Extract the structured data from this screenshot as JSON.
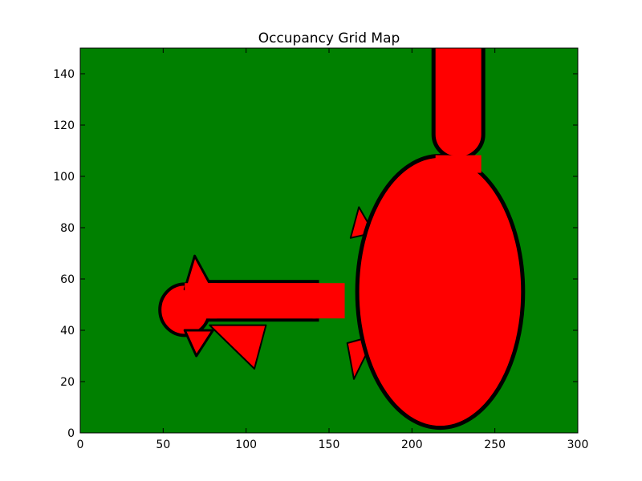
{
  "chart_data": {
    "type": "heatmap",
    "title": "Occupancy Grid Map",
    "xlabel": "",
    "ylabel": "",
    "xlim": [
      0,
      300
    ],
    "ylim": [
      0,
      150
    ],
    "x_ticks": [
      0,
      50,
      100,
      150,
      200,
      250,
      300
    ],
    "y_ticks": [
      0,
      20,
      40,
      60,
      80,
      100,
      120,
      140
    ],
    "grid": false,
    "legend": "none",
    "colors": {
      "unknown": "#008000",
      "free": "#ff0000",
      "occupied": "#000000"
    },
    "free_region": {
      "main_ellipse": {
        "center": [
          217,
          55
        ],
        "radius_x": 50,
        "radius_y": 53
      },
      "top_corridor": {
        "x": [
          213,
          243
        ],
        "y": [
          107,
          150
        ]
      },
      "left_corridor": {
        "x": [
          75,
          143
        ],
        "y": [
          44,
          59
        ]
      },
      "left_bulb": {
        "center": [
          63,
          48
        ],
        "radius_x": 15,
        "radius_y": 10
      },
      "left_spike_top": {
        "peak": [
          69,
          69
        ],
        "base_x": [
          63,
          80
        ]
      },
      "left_spike_bottom": {
        "peak": [
          70,
          30
        ],
        "base_x": [
          63,
          80
        ]
      },
      "lower_wedge": {
        "points": [
          [
            78,
            42
          ],
          [
            112,
            42
          ],
          [
            105,
            25
          ]
        ]
      },
      "right_wedges": [
        {
          "points": [
            [
              163,
              76
            ],
            [
              168,
              88
            ],
            [
              177,
              78
            ]
          ]
        },
        {
          "points": [
            [
              161,
              35
            ],
            [
              165,
              21
            ],
            [
              178,
              38
            ]
          ]
        }
      ]
    }
  }
}
